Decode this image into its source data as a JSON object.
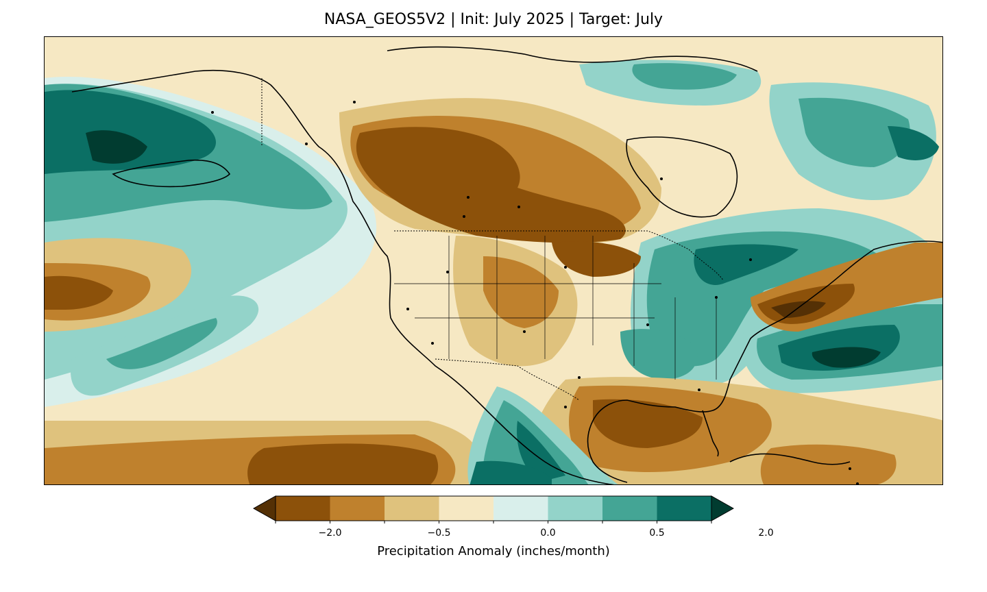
{
  "title": "NASA_GEOS5V2 | Init: July 2025 | Target: July",
  "map": {
    "projection": "lat-lon rectangular",
    "region": "North America",
    "variable": "precipitation anomaly",
    "boundaries": [
      "coastlines",
      "country borders",
      "US state borders"
    ],
    "cities_marked": true
  },
  "colorbar": {
    "label": "Precipitation Anomaly (inches/month)",
    "colors": [
      "#543005",
      "#8c510a",
      "#bf812d",
      "#dfc27d",
      "#f6e8c3",
      "#d9efeb",
      "#93d3c9",
      "#44a595",
      "#0b6f64",
      "#013c30"
    ],
    "tick_labels": [
      "−2.0",
      "−0.5",
      "0.0",
      "0.5",
      "2.0"
    ],
    "extend": "both"
  }
}
